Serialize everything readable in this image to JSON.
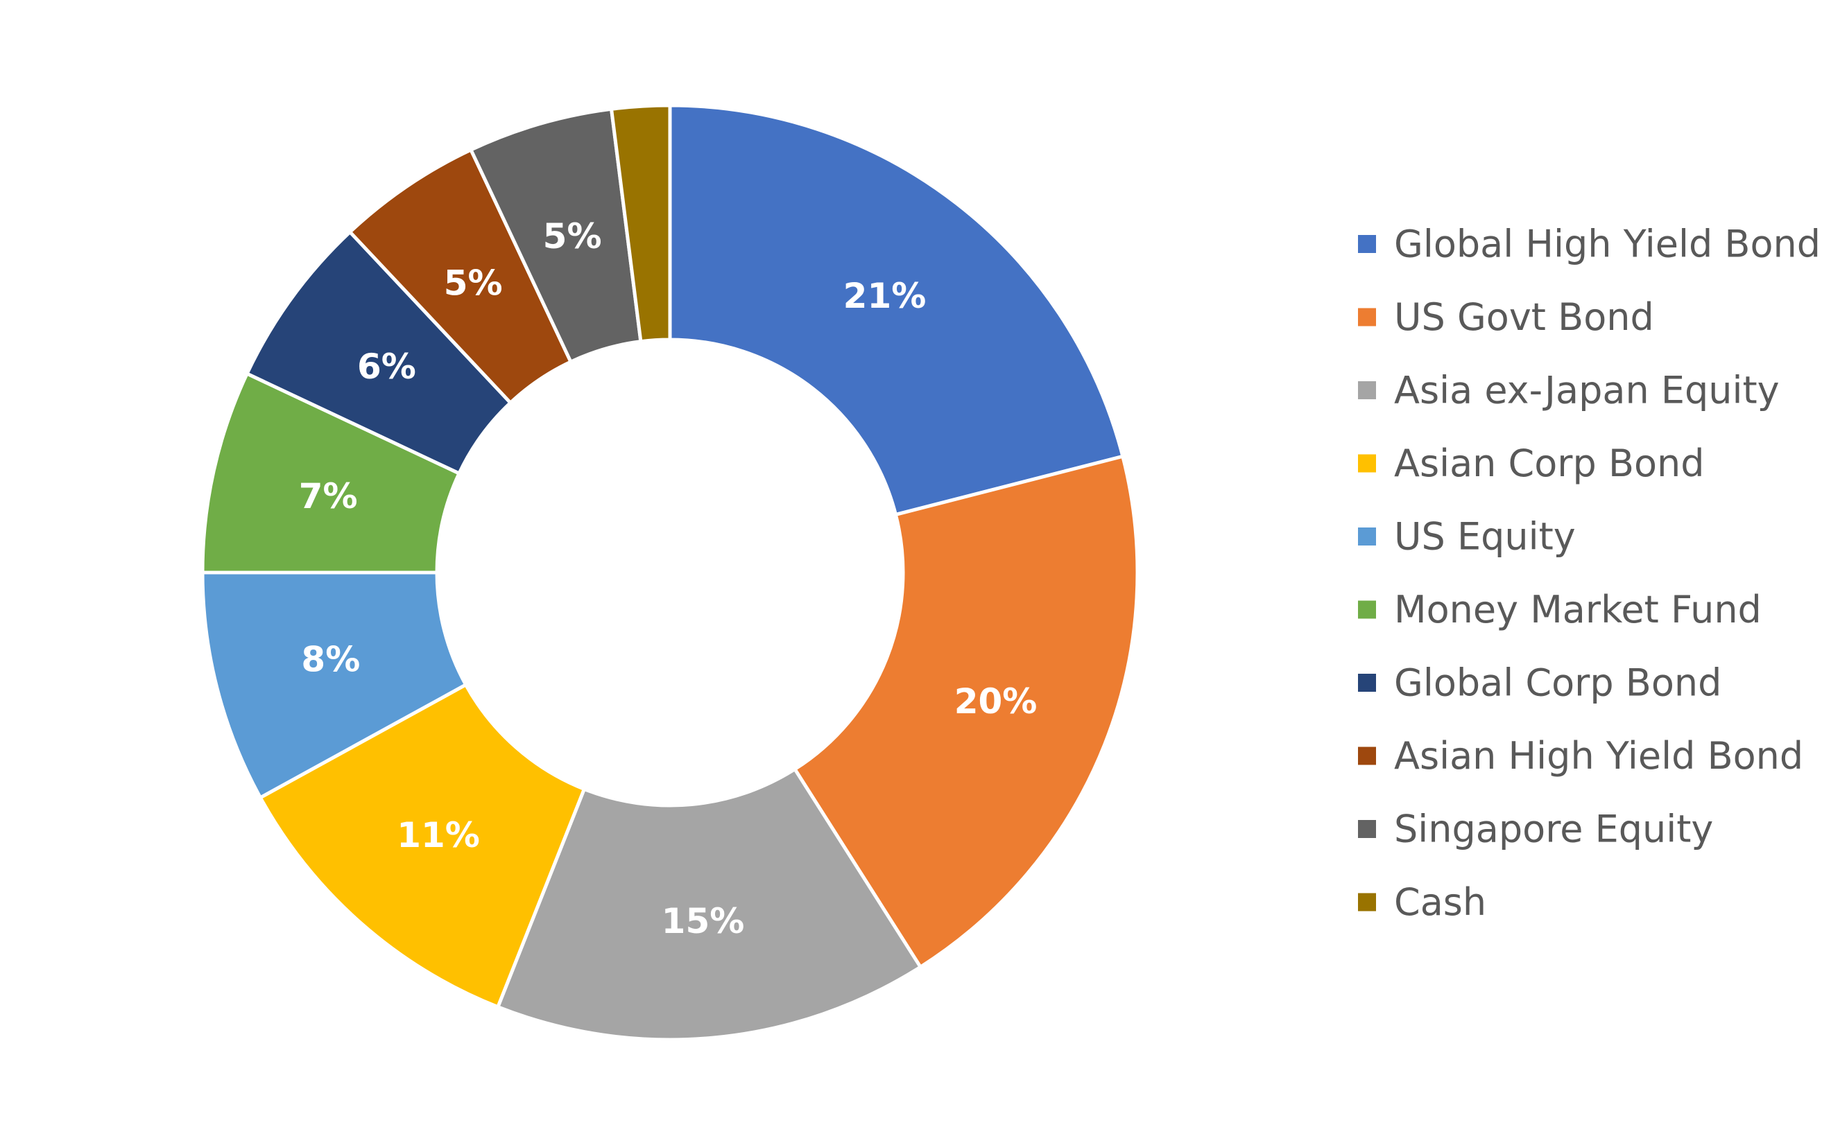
{
  "chart_data": {
    "type": "pie",
    "variant": "donut",
    "title": "",
    "legend_position": "right",
    "categories": [
      "Global High Yield Bond",
      "US Govt Bond",
      "Asia ex-Japan Equity",
      "Asian Corp Bond",
      "US Equity",
      "Money Market Fund",
      "Global Corp Bond",
      "Asian High Yield Bond",
      "Singapore Equity",
      "Cash"
    ],
    "values": [
      21,
      20,
      15,
      11,
      8,
      7,
      6,
      5,
      5,
      2
    ],
    "data_labels": [
      "21%",
      "20%",
      "15%",
      "11%",
      "8%",
      "7%",
      "6%",
      "5%",
      "5%",
      ""
    ],
    "colors": [
      "#4472C4",
      "#ED7D31",
      "#A5A5A5",
      "#FFC000",
      "#5B9BD5",
      "#70AD47",
      "#264478",
      "#9E480E",
      "#636363",
      "#997300"
    ]
  }
}
